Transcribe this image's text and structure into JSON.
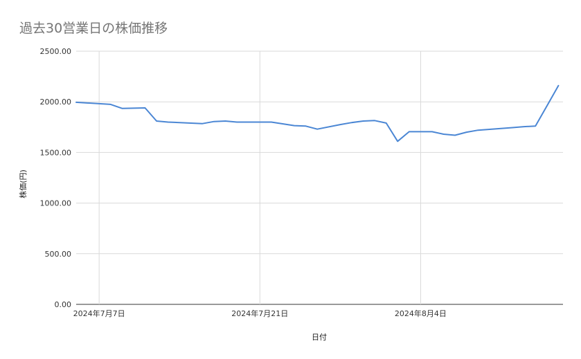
{
  "chart_data": {
    "type": "line",
    "title": "過去30営業日の株価推移",
    "xlabel": "日付",
    "ylabel": "株価(円)",
    "ylim": [
      0,
      2500
    ],
    "yticks": [
      0,
      500,
      1000,
      1500,
      2000,
      2500
    ],
    "ytick_labels": [
      "0.00",
      "500.00",
      "1000.00",
      "1500.00",
      "2000.00",
      "2500.00"
    ],
    "xlim": [
      "2024-07-05",
      "2024-08-16"
    ],
    "xticks": [
      "2024-07-07",
      "2024-07-21",
      "2024-08-04"
    ],
    "xtick_labels": [
      "2024年7月7日",
      "2024年7月21日",
      "2024年8月4日"
    ],
    "grid": true,
    "colors": {
      "line": "#4a86d4",
      "grid": "#d9d9d9",
      "axis": "#333333",
      "title": "#757575"
    },
    "series": [
      {
        "x": [
          "2024-07-05",
          "2024-07-08",
          "2024-07-09",
          "2024-07-11",
          "2024-07-12",
          "2024-07-13",
          "2024-07-16",
          "2024-07-17",
          "2024-07-18",
          "2024-07-19",
          "2024-07-22",
          "2024-07-24",
          "2024-07-25",
          "2024-07-26",
          "2024-07-28",
          "2024-07-29",
          "2024-07-30",
          "2024-07-31",
          "2024-08-01",
          "2024-08-02",
          "2024-08-03",
          "2024-08-05",
          "2024-08-06",
          "2024-08-07",
          "2024-08-08",
          "2024-08-09",
          "2024-08-12",
          "2024-08-13",
          "2024-08-14",
          "2024-08-15",
          "2024-08-16"
        ],
        "values": [
          1995,
          1975,
          1935,
          1940,
          1810,
          1800,
          1785,
          1805,
          1810,
          1800,
          1800,
          1765,
          1760,
          1730,
          1775,
          1795,
          1810,
          1815,
          1790,
          1610,
          1705,
          1705,
          1680,
          1670,
          1700,
          1720,
          1745,
          1755,
          1760,
          1960,
          2160
        ]
      }
    ]
  }
}
